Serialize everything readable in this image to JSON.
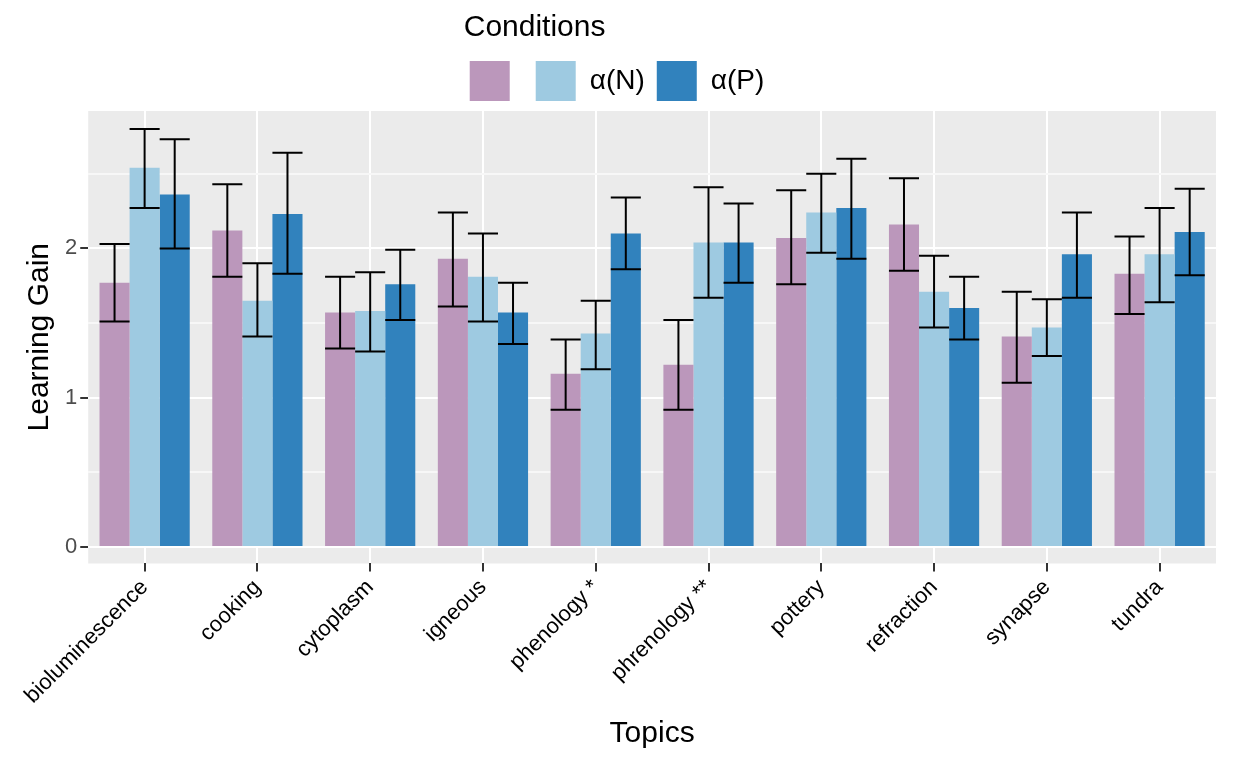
{
  "chart_data": {
    "type": "bar",
    "xlabel": "Topics",
    "ylabel": "Learning Gain",
    "legend_title": "Conditions",
    "legend": "top",
    "categories": [
      "bioluminescence",
      "cooking",
      "cytoplasm",
      "igneous",
      "phenology *",
      "phrenology **",
      "pottery",
      "refraction",
      "synapse",
      "tundra"
    ],
    "series": [
      {
        "color": "#bb97bb",
        "values": [
          1.77,
          2.12,
          1.57,
          1.93,
          1.16,
          1.22,
          2.07,
          2.16,
          1.41,
          1.83
        ],
        "errors": [
          [
            1.51,
            2.03
          ],
          [
            1.81,
            2.43
          ],
          [
            1.33,
            1.81
          ],
          [
            1.61,
            2.24
          ],
          [
            0.92,
            1.39
          ],
          [
            0.92,
            1.52
          ],
          [
            1.76,
            2.39
          ],
          [
            1.85,
            2.47
          ],
          [
            1.1,
            1.71
          ],
          [
            1.56,
            2.08
          ]
        ]
      },
      {
        "name": "α(N)",
        "color": "#9ecae1",
        "values": [
          2.54,
          1.65,
          1.58,
          1.81,
          1.43,
          2.04,
          2.24,
          1.71,
          1.47,
          1.96
        ],
        "errors": [
          [
            2.27,
            2.8
          ],
          [
            1.41,
            1.9
          ],
          [
            1.31,
            1.84
          ],
          [
            1.51,
            2.1
          ],
          [
            1.19,
            1.65
          ],
          [
            1.67,
            2.41
          ],
          [
            1.97,
            2.5
          ],
          [
            1.47,
            1.95
          ],
          [
            1.28,
            1.66
          ],
          [
            1.64,
            2.27
          ]
        ]
      },
      {
        "name": "α(P)",
        "color": "#3182bd",
        "values": [
          2.36,
          2.23,
          1.76,
          1.57,
          2.1,
          2.04,
          2.27,
          1.6,
          1.96,
          2.11
        ],
        "errors": [
          [
            2.0,
            2.73
          ],
          [
            1.83,
            2.64
          ],
          [
            1.52,
            1.99
          ],
          [
            1.36,
            1.77
          ],
          [
            1.86,
            2.34
          ],
          [
            1.77,
            2.3
          ],
          [
            1.93,
            2.6
          ],
          [
            1.39,
            1.81
          ],
          [
            1.67,
            2.24
          ],
          [
            1.82,
            2.4
          ]
        ]
      }
    ],
    "ylim": [
      -0.11,
      2.92
    ],
    "yticks": [
      0,
      {
        "value": 0.5,
        "label": null
      },
      1,
      {
        "value": 1.5,
        "label": null
      },
      2,
      {
        "value": 2.5,
        "label": null
      }
    ],
    "grid": true
  }
}
